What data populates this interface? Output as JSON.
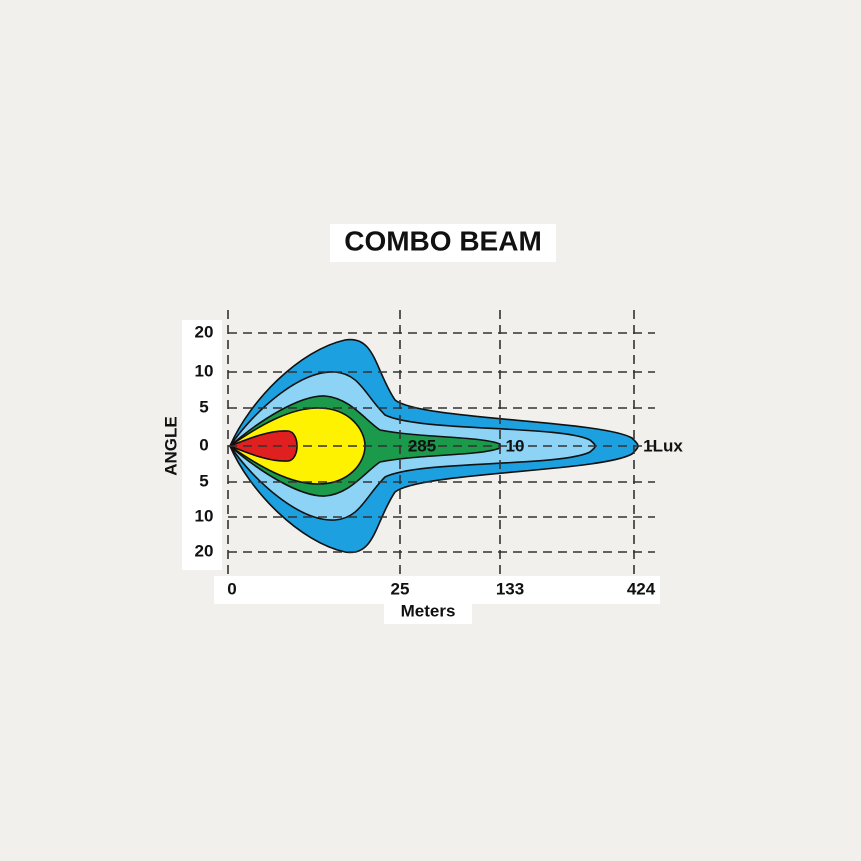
{
  "title": "COMBO BEAM",
  "y_axis": {
    "title": "ANGLE",
    "labels": [
      "20",
      "10",
      "5",
      "0",
      "5",
      "10",
      "20"
    ]
  },
  "x_axis": {
    "title": "Meters",
    "labels": [
      "0",
      "25",
      "133",
      "424"
    ]
  },
  "contour_labels": [
    "285",
    "10",
    "1Lux"
  ]
}
